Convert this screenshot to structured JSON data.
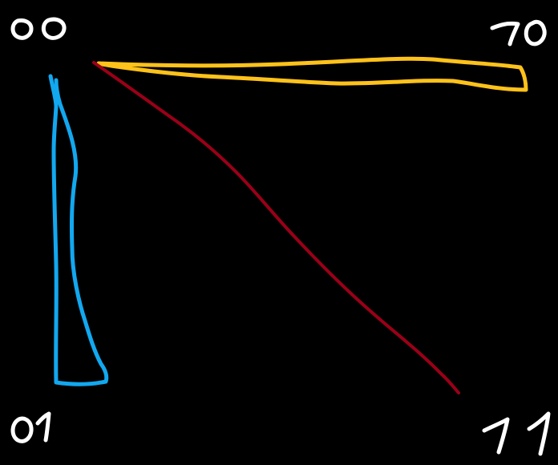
{
  "labels": {
    "top_left": "00",
    "top_right": "10",
    "bottom_left": "01",
    "bottom_right": "11"
  },
  "colors": {
    "background": "#000000",
    "label": "#ffffff",
    "yellow_loop": "#ffc21a",
    "blue_loop": "#12a8f0",
    "red_line": "#9a0018"
  }
}
